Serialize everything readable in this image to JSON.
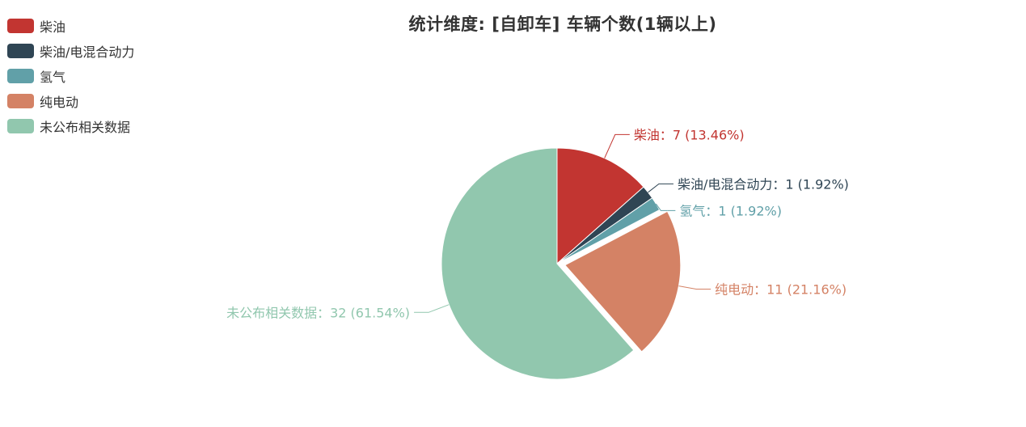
{
  "chart_data": {
    "type": "pie",
    "title": "统计维度: [自卸车] 车辆个数(1辆以上)",
    "slices": [
      {
        "name": "柴油",
        "value": 7,
        "percent": "13.46%",
        "color": "#c23531"
      },
      {
        "name": "柴油/电混合动力",
        "value": 1,
        "percent": "1.92%",
        "color": "#2f4554"
      },
      {
        "name": "氢气",
        "value": 1,
        "percent": "1.92%",
        "color": "#61a0a8"
      },
      {
        "name": "纯电动",
        "value": 11,
        "percent": "21.16%",
        "color": "#d48265"
      },
      {
        "name": "未公布相关数据",
        "value": 32,
        "percent": "61.54%",
        "color": "#91c7ae"
      }
    ],
    "slice_labels": [
      "柴油：7 (13.46%)",
      "柴油/电混合动力：1 (1.92%)",
      "氢气：1 (1.92%)",
      "纯电动：11 (21.16%)",
      "未公布相关数据：32 (61.54%)"
    ],
    "legend_position": "top-left",
    "selected_slice": "纯电动"
  }
}
